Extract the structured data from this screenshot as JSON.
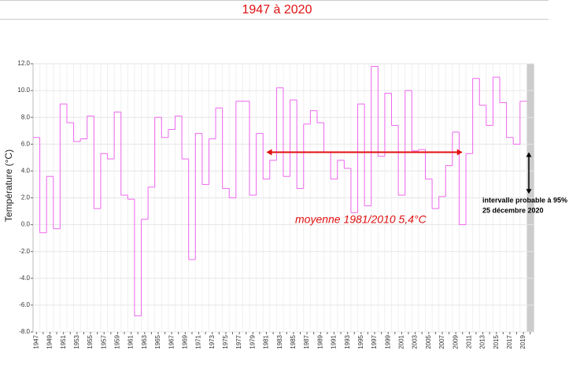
{
  "chart_data": {
    "type": "step",
    "title": "1947 à 2020",
    "y_label": "Température (°C)",
    "categories": [
      "1947",
      null,
      "1949",
      null,
      "1951",
      null,
      "1953",
      null,
      "1955",
      null,
      "1957",
      null,
      "1959",
      null,
      "1961",
      null,
      "1963",
      null,
      "1965",
      null,
      "1967",
      null,
      "1969",
      null,
      "1971",
      null,
      "1973",
      null,
      "1975",
      null,
      "1977",
      null,
      "1979",
      null,
      "1981",
      null,
      "1983",
      null,
      "1985",
      null,
      "1987",
      null,
      "1989",
      null,
      "1991",
      null,
      "1993",
      null,
      "1995",
      null,
      "1997",
      null,
      "1999",
      null,
      "2001",
      null,
      "2003",
      null,
      "2005",
      null,
      "2007",
      null,
      "2009",
      null,
      "2011",
      null,
      "2013",
      null,
      "2015",
      null,
      "2017",
      null,
      "2019",
      null
    ],
    "values": [
      6.5,
      -0.6,
      3.6,
      -0.3,
      9.0,
      7.6,
      6.2,
      6.4,
      8.1,
      1.2,
      5.3,
      4.9,
      8.4,
      2.2,
      1.9,
      -6.8,
      0.4,
      2.8,
      8.0,
      6.5,
      7.1,
      8.1,
      4.9,
      -2.6,
      6.8,
      3.0,
      6.4,
      8.7,
      2.7,
      2.0,
      9.2,
      9.2,
      2.2,
      6.8,
      3.4,
      4.8,
      10.2,
      3.6,
      9.3,
      2.7,
      7.5,
      8.5,
      7.6,
      5.4,
      3.4,
      4.8,
      4.2,
      0.9,
      9.0,
      1.4,
      11.8,
      5.1,
      9.8,
      7.4,
      2.2,
      10.0,
      5.5,
      5.6,
      3.4,
      1.2,
      2.1,
      4.4,
      6.9,
      0.0,
      5.3,
      10.9,
      8.9,
      7.4,
      11.0,
      9.1,
      6.5,
      6.0,
      9.2,
      null
    ],
    "color": "#ee66ee",
    "ylim": [
      -8,
      12
    ],
    "yticks": [
      {
        "value": -8,
        "label": "-8.0"
      },
      {
        "value": -6,
        "label": "-6.0"
      },
      {
        "value": -4,
        "label": "-4.0"
      },
      {
        "value": -2,
        "label": "-2.0"
      },
      {
        "value": 0,
        "label": "0.0"
      },
      {
        "value": 2,
        "label": "2.0"
      },
      {
        "value": 4,
        "label": "4.0"
      },
      {
        "value": 6,
        "label": "6.0"
      },
      {
        "value": 8,
        "label": "8.0"
      },
      {
        "value": 10,
        "label": "10.0"
      },
      {
        "value": 12,
        "label": "12.0"
      }
    ],
    "grid": true,
    "mean": {
      "value": 5.4,
      "label": "moyenne 1981/2010 5,4°C",
      "color": "#e01010"
    },
    "interval": {
      "values": [
        2.3,
        5.4
      ],
      "label": "intervalle probable à 95%",
      "date": "25 décembre 2020"
    }
  }
}
